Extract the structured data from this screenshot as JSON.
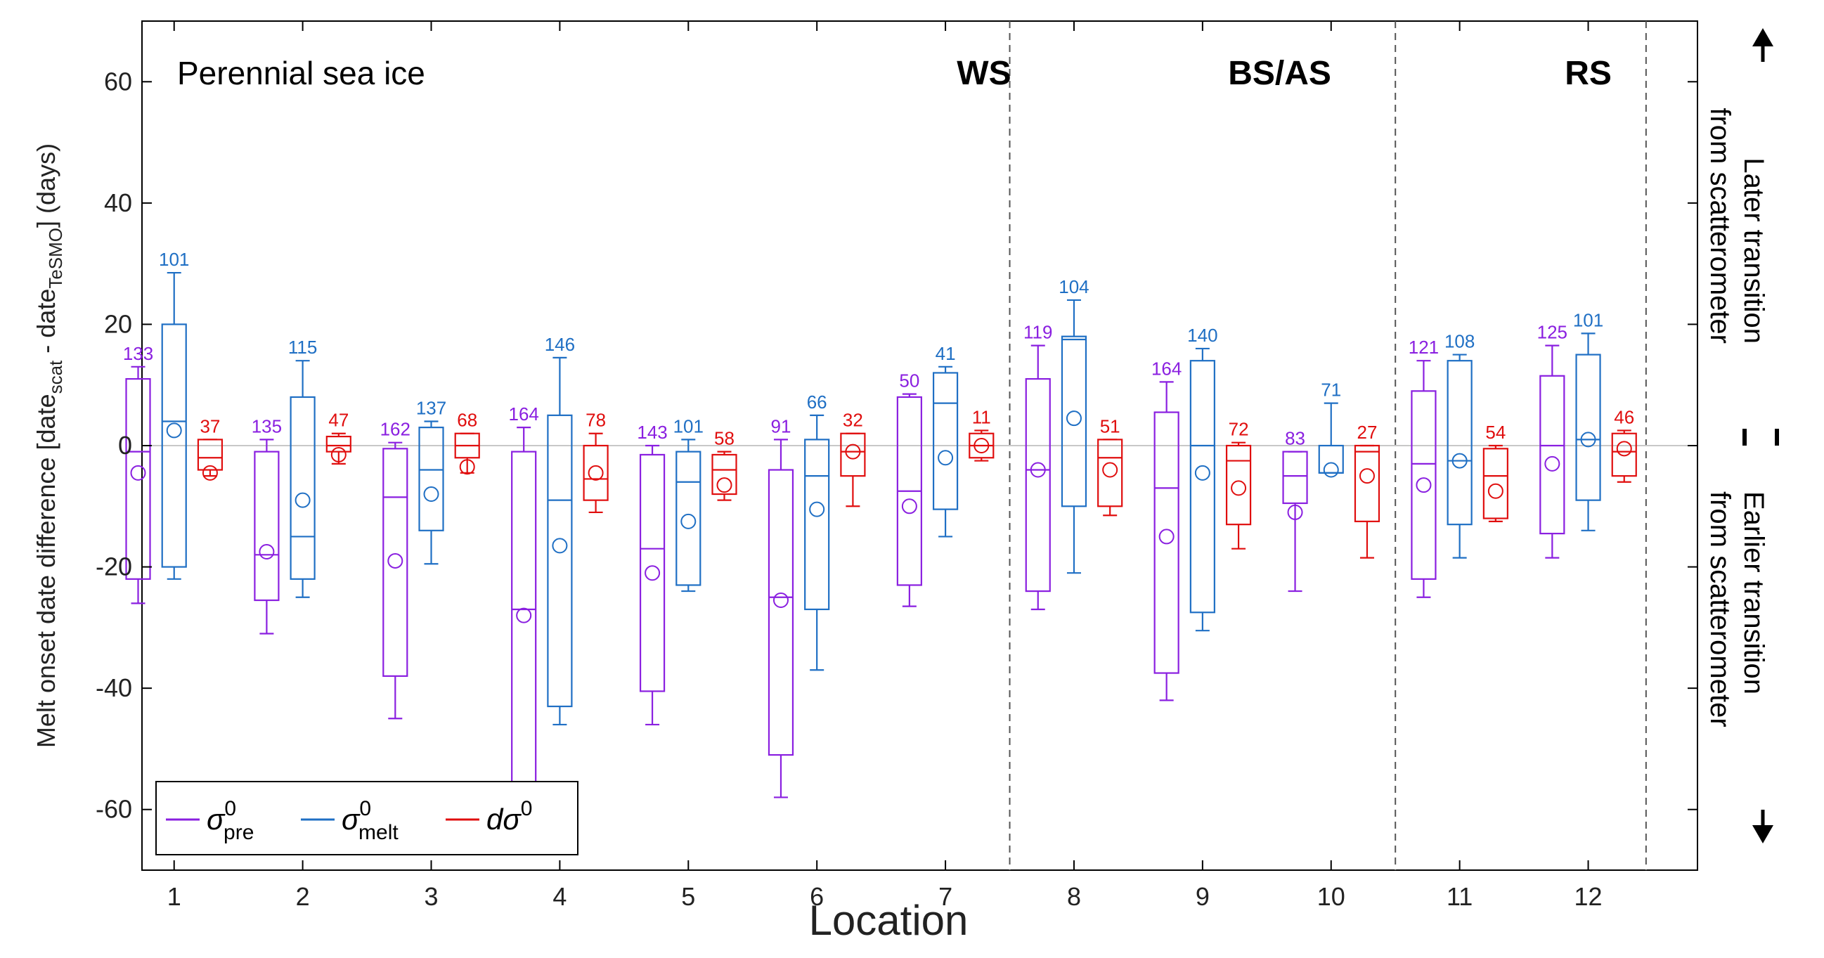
{
  "chart_data": {
    "type": "box",
    "panel_label": "Perennial sea ice",
    "xlabel": "Location",
    "ylabel": {
      "main": "Melt onset date difference [date",
      "sub1": "scat",
      "mid": " - date",
      "sub2": "TeSMO",
      "end": "] (days)"
    },
    "ylim": [
      -70,
      70
    ],
    "yticks": [
      -60,
      -40,
      -20,
      0,
      20,
      40,
      60
    ],
    "xlim": [
      0.75,
      12.85
    ],
    "categories": [
      "1",
      "2",
      "3",
      "4",
      "5",
      "6",
      "7",
      "8",
      "9",
      "10",
      "11",
      "12"
    ],
    "grid": false,
    "zero_line": true,
    "region_dividers": [
      7.5,
      10.5,
      12.45
    ],
    "regions": [
      {
        "label": "WS",
        "x": 7.3
      },
      {
        "label": "BS/AS",
        "x": 9.6
      },
      {
        "label": "RS",
        "x": 12.0
      }
    ],
    "series": [
      {
        "name": "σ⁰pre",
        "symbol": "σ",
        "sup": "0",
        "sub": "pre",
        "color": "#8a1fe0",
        "offset": -0.28,
        "whisker_low": [
          -26,
          -31,
          -45,
          -58,
          -46,
          -58,
          -26.5,
          -27,
          -42,
          -24,
          -25,
          -18.5
        ],
        "q1": [
          -22,
          -25.5,
          -38,
          -56,
          -40.5,
          -51,
          -23,
          -24,
          -37.5,
          -9.5,
          -22,
          -14.5
        ],
        "median": [
          -1,
          -18,
          -8.5,
          -27,
          -17,
          -25,
          -7.5,
          -4,
          -7,
          -5,
          -3,
          0
        ],
        "q3": [
          11,
          -1,
          -0.5,
          -1,
          -1.5,
          -4,
          8,
          11,
          5.5,
          -1,
          9,
          11.5
        ],
        "whisker_high": [
          13,
          1,
          0.5,
          3,
          0,
          1,
          8.5,
          16.5,
          10.5,
          -1,
          14,
          16.5
        ],
        "mean": [
          -4.5,
          -17.5,
          -19,
          -28,
          -21,
          -25.5,
          -10,
          -4,
          -15,
          -11,
          -6.5,
          -3
        ],
        "n": [
          "133",
          "135",
          "162",
          "164",
          "143",
          "91",
          "50",
          "119",
          "164",
          "83",
          "121",
          "125"
        ]
      },
      {
        "name": "σ⁰melt",
        "symbol": "σ",
        "sup": "0",
        "sub": "melt",
        "color": "#1f6fc4",
        "offset": 0.0,
        "whisker_low": [
          -22,
          -25,
          -19.5,
          -46,
          -24,
          -37,
          -15,
          -21,
          -30.5,
          -4.5,
          -18.5,
          -14
        ],
        "q1": [
          -20,
          -22,
          -14,
          -43,
          -23,
          -27,
          -10.5,
          -10,
          -27.5,
          -4.5,
          -13,
          -9
        ],
        "median": [
          4,
          -15,
          -4,
          -9,
          -6,
          -5,
          7,
          17.5,
          0,
          -4.5,
          -2.5,
          1
        ],
        "q3": [
          20,
          8,
          3,
          5,
          -1,
          1,
          12,
          18,
          14,
          0,
          14,
          15
        ],
        "whisker_high": [
          28.5,
          14,
          4,
          14.5,
          1,
          5,
          13,
          24,
          16,
          7,
          15,
          18.5
        ],
        "mean": [
          2.5,
          -9,
          -8,
          -16.5,
          -12.5,
          -10.5,
          -2,
          4.5,
          -4.5,
          -4,
          -2.5,
          1
        ],
        "n": [
          "101",
          "115",
          "137",
          "146",
          "101",
          "66",
          "41",
          "104",
          "140",
          "71",
          "108",
          "101"
        ]
      },
      {
        "name": "dσ⁰",
        "symbol": "dσ",
        "sup": "0",
        "sub": "",
        "color": "#e00e0e",
        "offset": 0.28,
        "whisker_low": [
          -5,
          -3,
          -4.5,
          -11,
          -9,
          -10,
          -2.5,
          -11.5,
          -17,
          -18.5,
          -12.5,
          -6
        ],
        "q1": [
          -4,
          -1,
          -2,
          -9,
          -8,
          -5,
          -2,
          -10,
          -13,
          -12.5,
          -12,
          -5
        ],
        "median": [
          -2,
          0,
          0,
          -5.5,
          -4,
          -1,
          0,
          -2,
          -2.5,
          -1,
          -5,
          -1
        ],
        "q3": [
          1,
          1.5,
          2,
          0,
          -1.5,
          2,
          2,
          1,
          0,
          0,
          -0.5,
          2
        ],
        "whisker_high": [
          1,
          2,
          2,
          2,
          -1,
          2,
          2.5,
          1,
          0.5,
          0,
          0,
          2.5
        ],
        "mean": [
          -4.5,
          -1.5,
          -3.5,
          -4.5,
          -6.5,
          -1,
          0,
          -4,
          -7,
          -5,
          -7.5,
          -0.5
        ],
        "n": [
          "37",
          "47",
          "68",
          "78",
          "58",
          "32",
          "11",
          "51",
          "72",
          "27",
          "54",
          "46"
        ]
      }
    ],
    "right_annotation": {
      "top": [
        "Later transition",
        "from scatterometer"
      ],
      "bottom": [
        "Earlier transition",
        "from scatterometer"
      ]
    },
    "legend_position": "bottom-left"
  }
}
